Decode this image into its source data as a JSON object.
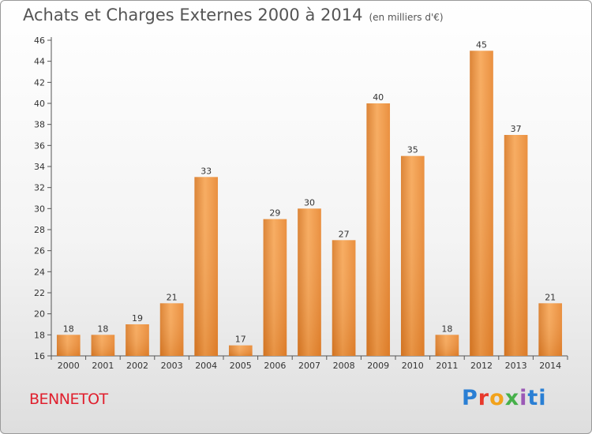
{
  "title": "Achats et Charges Externes 2000 à 2014",
  "subtitle": "(en milliers d'€)",
  "commune": "BENNETOT",
  "logo": [
    "P",
    "r",
    "o",
    "x",
    "i",
    "t",
    "i"
  ],
  "colors": {
    "bar": "#f0923a",
    "bar_light": "#f7b06a",
    "bar_dark": "#d2721f",
    "title": "#555555",
    "commune": "#e0202e"
  },
  "chart_data": {
    "type": "bar",
    "categories": [
      "2000",
      "2001",
      "2002",
      "2003",
      "2004",
      "2005",
      "2006",
      "2007",
      "2008",
      "2009",
      "2010",
      "2011",
      "2012",
      "2013",
      "2014"
    ],
    "values": [
      18,
      18,
      19,
      21,
      33,
      17,
      29,
      30,
      27,
      40,
      35,
      18,
      45,
      37,
      21
    ],
    "ylim": [
      16,
      46
    ],
    "yticks": [
      16,
      18,
      20,
      22,
      24,
      26,
      28,
      30,
      32,
      34,
      36,
      38,
      40,
      42,
      44,
      46
    ],
    "grid": false,
    "data_labels": true
  }
}
